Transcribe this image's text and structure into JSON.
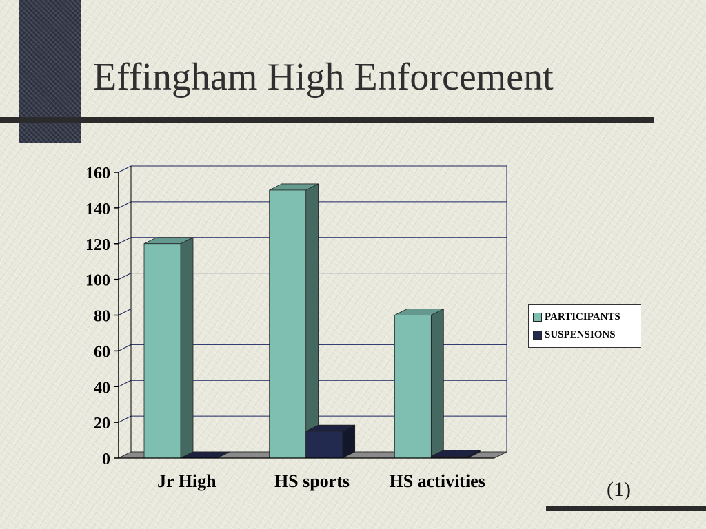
{
  "slide": {
    "title": "Effingham High Enforcement",
    "page_number": "(1)"
  },
  "colors": {
    "participants": "#7ebfb1",
    "suspensions": "#232a4f",
    "gridline": "#1a2660",
    "floor": "#8a8a8a"
  },
  "chart_data": {
    "type": "bar",
    "title": "",
    "xlabel": "",
    "ylabel": "",
    "categories": [
      "Jr High",
      "HS sports",
      "HS activities"
    ],
    "series": [
      {
        "name": "PARTICIPANTS",
        "values": [
          120,
          150,
          80
        ]
      },
      {
        "name": "SUSPENSIONS",
        "values": [
          0,
          15,
          1
        ]
      }
    ],
    "ylim": [
      0,
      160
    ],
    "yticks": [
      0,
      20,
      40,
      60,
      80,
      100,
      120,
      140,
      160
    ],
    "grid": true,
    "legend_position": "right",
    "style": "3d-column"
  }
}
